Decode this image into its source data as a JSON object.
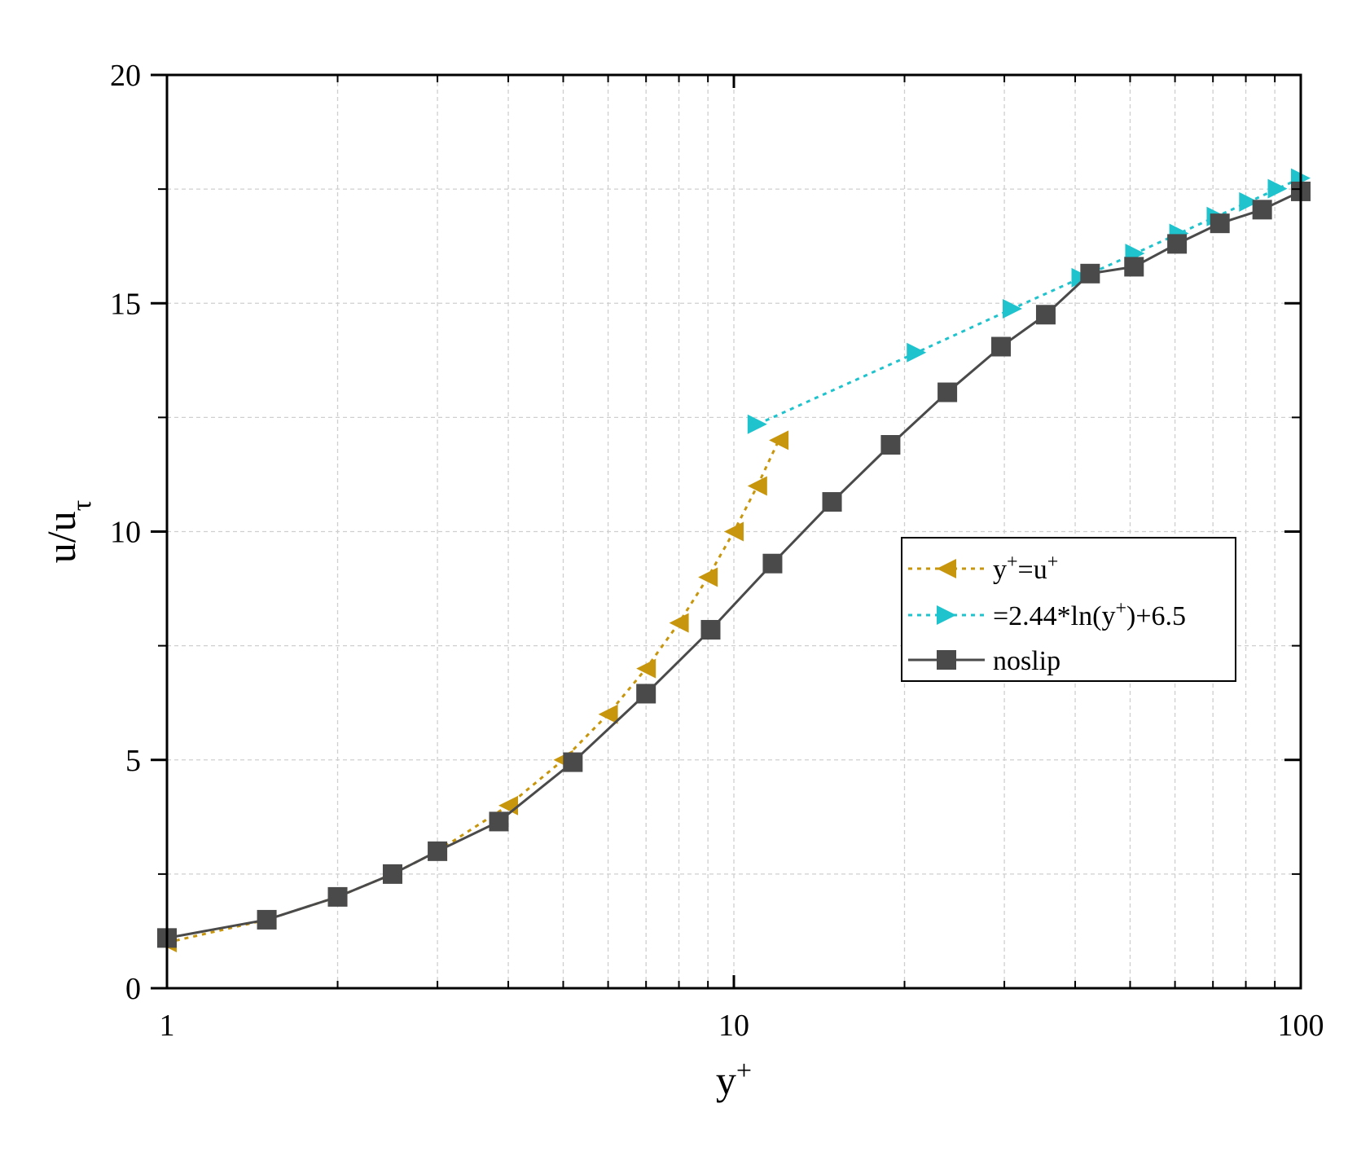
{
  "colors": {
    "linear": "#c8960c",
    "log_law": "#1ec3cd",
    "noslip": "#4a4a4a",
    "grid": "#cfcfcf",
    "axis": "#000000"
  },
  "chart_data": {
    "type": "line",
    "xscale": "log",
    "xlim": [
      1,
      100
    ],
    "ylim": [
      0,
      20
    ],
    "xlabel": "y",
    "xlabel_sup": "+",
    "ylabel": "u/u",
    "ylabel_sub": "τ",
    "x_ticks": [
      1,
      10,
      100
    ],
    "x_tick_labels": [
      "1",
      "10",
      "100"
    ],
    "y_ticks": [
      0,
      5,
      10,
      15,
      20
    ],
    "y_tick_labels": [
      "0",
      "5",
      "10",
      "15",
      "20"
    ],
    "grid": true,
    "legend_position": "center-right",
    "series": [
      {
        "name_parts": [
          "y",
          "+",
          "=u",
          "+"
        ],
        "style": "dotted",
        "marker": "triangle-left",
        "x": [
          1,
          1.5,
          2,
          2.5,
          3,
          4,
          5,
          6,
          7,
          8,
          9,
          10,
          11,
          12
        ],
        "y": [
          1,
          1.5,
          2,
          2.5,
          3,
          4,
          5,
          6,
          7,
          8,
          9,
          10,
          11,
          12
        ]
      },
      {
        "name_parts": [
          "=2.44*ln(y",
          "+",
          ")+6.5"
        ],
        "style": "dotted",
        "marker": "triangle-right",
        "x": [
          11,
          21,
          31,
          41,
          51,
          61,
          71,
          81,
          91,
          100
        ],
        "y": [
          12.35,
          13.92,
          14.88,
          15.56,
          16.09,
          16.53,
          16.9,
          17.22,
          17.51,
          17.74
        ]
      },
      {
        "name_parts": [
          "noslip"
        ],
        "style": "solid",
        "marker": "square",
        "x": [
          1,
          1.5,
          2,
          2.5,
          3,
          3.85,
          5.2,
          7,
          9.1,
          11.7,
          14.9,
          18.9,
          23.8,
          29.6,
          35.5,
          42.5,
          50.8,
          60.5,
          72,
          85.5,
          100
        ],
        "y": [
          1.1,
          1.5,
          2.0,
          2.5,
          3.0,
          3.65,
          4.95,
          6.45,
          7.85,
          9.3,
          10.65,
          11.9,
          13.05,
          14.05,
          14.75,
          15.65,
          15.8,
          16.3,
          16.75,
          17.05,
          17.45
        ]
      }
    ]
  }
}
